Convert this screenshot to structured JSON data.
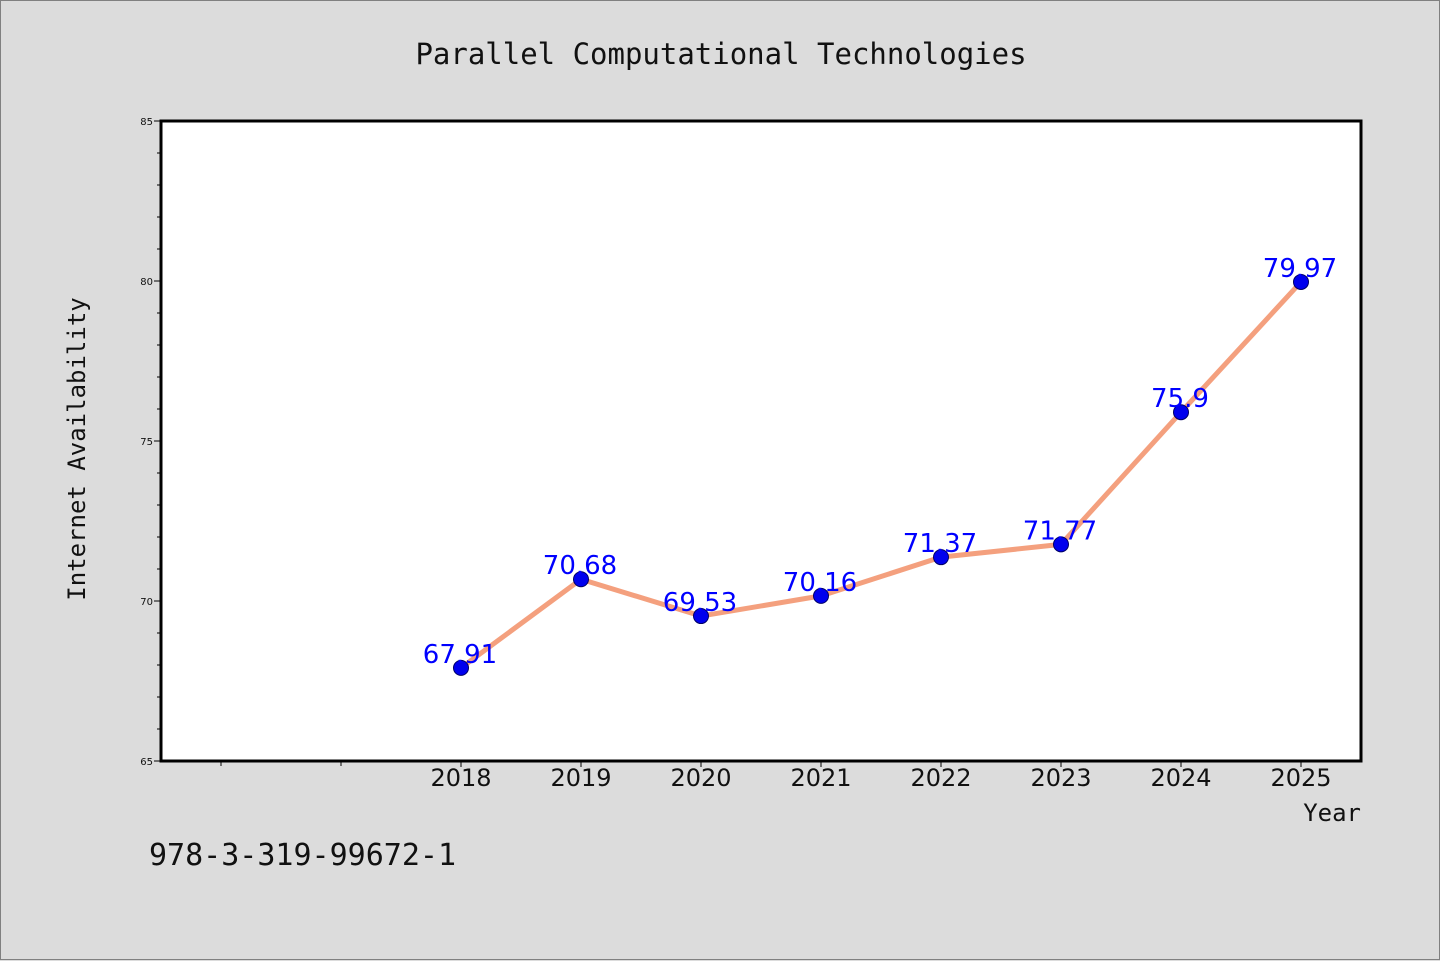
{
  "chart_data": {
    "type": "line",
    "title": "Parallel Computational Technologies",
    "xlabel": "Year",
    "ylabel": "Internet Availability",
    "x": [
      "2018",
      "2019",
      "2020",
      "2021",
      "2022",
      "2023",
      "2024",
      "2025"
    ],
    "series": [
      {
        "values": [
          67.91,
          70.68,
          69.53,
          70.16,
          71.37,
          71.77,
          75.9,
          79.97
        ],
        "data_labels": [
          "67.91",
          "70.68",
          "69.53",
          "70.16",
          "71.37",
          "71.77",
          "75.9",
          "79.97"
        ]
      }
    ],
    "ylim": [
      65,
      85
    ],
    "yticks": [
      "65",
      "70",
      "75",
      "80",
      "85"
    ],
    "grid": false,
    "legend": "none",
    "colors": {
      "line": "#f4a07e",
      "marker": "#0000ee",
      "marker_edge": "#000066",
      "label": "#0000ff",
      "plot_bg": "#ffffff",
      "page_bg": "#dcdcdc"
    }
  },
  "footer": {
    "isbn": "978-3-319-99672-1"
  }
}
